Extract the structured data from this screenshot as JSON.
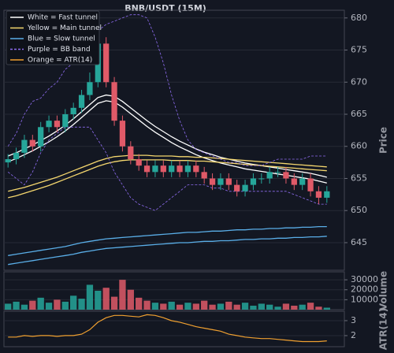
{
  "chart_data": [
    {
      "type": "candlestick",
      "title": "BNB/USDT (15M)",
      "y_label": "Price",
      "ylim": [
        640.7,
        681.2
      ],
      "yticks": [
        645,
        650,
        655,
        660,
        665,
        670,
        675,
        680
      ],
      "up_color": "#26a69a",
      "down_color": "#e05a68",
      "open": [
        657.5,
        658,
        659,
        661,
        660,
        663,
        664,
        663,
        665,
        666,
        668,
        670,
        676,
        670,
        664,
        660,
        658,
        657,
        656,
        657,
        656,
        657,
        656,
        657,
        656,
        655,
        654,
        655,
        654,
        653,
        654,
        655,
        655,
        656,
        656,
        655,
        654,
        655,
        653,
        652
      ],
      "high": [
        658.8,
        659.8,
        661.8,
        661.8,
        663.8,
        664.8,
        664.8,
        665.8,
        666.8,
        668.8,
        671.5,
        678.2,
        677,
        670.8,
        664.8,
        660.8,
        658.8,
        657.8,
        657.8,
        657.8,
        657.8,
        657.8,
        657.8,
        657.8,
        656.8,
        655.8,
        655.8,
        655.8,
        654.8,
        654.8,
        655.8,
        655.8,
        656.8,
        656.8,
        656.8,
        655.8,
        655.8,
        655.8,
        653.8,
        653.8
      ],
      "low": [
        656.7,
        657.2,
        658.2,
        659.2,
        659.2,
        662.2,
        662.2,
        662.2,
        664.2,
        665.2,
        667.2,
        669.2,
        669.2,
        663.2,
        659.2,
        657.2,
        656.2,
        655.2,
        655.2,
        655.2,
        655.2,
        655.2,
        655.2,
        655.2,
        654.2,
        653.2,
        653.2,
        653.2,
        652.2,
        652.2,
        653.2,
        654.2,
        654.2,
        655.2,
        654.2,
        653.2,
        653.2,
        652.2,
        651,
        651.2
      ],
      "close": [
        658,
        659,
        661,
        660,
        663,
        664,
        663,
        665,
        666,
        668,
        670,
        676,
        670,
        664,
        660,
        658,
        657,
        656,
        657,
        656,
        657,
        656,
        657,
        656,
        655,
        654,
        655,
        654,
        653,
        654,
        655,
        655,
        656,
        656,
        655,
        654,
        655,
        653,
        652,
        653
      ],
      "series": [
        {
          "name": "White = Fast tunnel",
          "color": "#ffffff",
          "upper": [
            658.5,
            659,
            659.6,
            660.2,
            660.9,
            661.6,
            662.4,
            663.3,
            664.3,
            665.4,
            666.5,
            667.6,
            668,
            667.8,
            667,
            666,
            665,
            664,
            663.1,
            662.3,
            661.5,
            660.8,
            660.2,
            659.6,
            659.1,
            658.7,
            658.3,
            658,
            657.7,
            657.4,
            657.2,
            657,
            656.8,
            656.6,
            656.4,
            656.2,
            656,
            655.8,
            655.5,
            655.2
          ],
          "lower": [
            657.6,
            658.1,
            658.7,
            659.3,
            660,
            660.7,
            661.5,
            662.4,
            663.4,
            664.5,
            665.6,
            666.7,
            667.1,
            666.9,
            666.1,
            665.1,
            664.1,
            663.1,
            662.2,
            661.4,
            660.6,
            659.9,
            659.3,
            658.7,
            658.2,
            657.8,
            657.4,
            657.1,
            656.8,
            656.5,
            656.3,
            656.1,
            655.9,
            655.7,
            655.5,
            655.3,
            655.1,
            654.9,
            654.6,
            654.3
          ]
        },
        {
          "name": "Yellow = Main tunnel",
          "color": "#f5d76e",
          "upper": [
            653,
            653.3,
            653.6,
            654,
            654.4,
            654.8,
            655.2,
            655.7,
            656.2,
            656.7,
            657.2,
            657.7,
            658.1,
            658.4,
            658.5,
            658.6,
            658.6,
            658.6,
            658.5,
            658.5,
            658.5,
            658.4,
            658.4,
            658.3,
            658.3,
            658.2,
            658.1,
            658,
            657.9,
            657.8,
            657.7,
            657.6,
            657.5,
            657.4,
            657.3,
            657.2,
            657.1,
            657,
            656.9,
            656.8
          ],
          "lower": [
            652,
            652.3,
            652.7,
            653.1,
            653.5,
            653.9,
            654.4,
            654.9,
            655.4,
            655.9,
            656.4,
            656.9,
            657.3,
            657.6,
            657.8,
            657.9,
            657.9,
            657.9,
            657.9,
            657.9,
            657.8,
            657.8,
            657.8,
            657.7,
            657.7,
            657.6,
            657.5,
            657.4,
            657.3,
            657.2,
            657.1,
            657,
            656.9,
            656.8,
            656.7,
            656.6,
            656.5,
            656.4,
            656.3,
            656.2
          ]
        },
        {
          "name": "Blue = Slow tunnel",
          "color": "#5aaee8",
          "upper": [
            643,
            643.2,
            643.4,
            643.6,
            643.8,
            644,
            644.2,
            644.4,
            644.7,
            645,
            645.2,
            645.4,
            645.6,
            645.7,
            645.8,
            645.9,
            646,
            646.1,
            646.2,
            646.3,
            646.4,
            646.5,
            646.6,
            646.6,
            646.7,
            646.8,
            646.8,
            646.9,
            647,
            647,
            647.1,
            647.1,
            647.2,
            647.2,
            647.3,
            647.3,
            647.4,
            647.4,
            647.5,
            647.5
          ],
          "lower": [
            641.6,
            641.8,
            642,
            642.2,
            642.4,
            642.6,
            642.8,
            643,
            643.2,
            643.5,
            643.7,
            643.9,
            644.1,
            644.2,
            644.3,
            644.4,
            644.5,
            644.6,
            644.7,
            644.8,
            644.9,
            645,
            645,
            645.1,
            645.2,
            645.2,
            645.3,
            645.3,
            645.4,
            645.5,
            645.5,
            645.6,
            645.6,
            645.7,
            645.7,
            645.8,
            645.8,
            645.9,
            645.9,
            646
          ]
        },
        {
          "name": "Purple = BB band",
          "color": "#8e6cf0",
          "dashed": true,
          "upper": [
            660,
            662,
            665,
            667,
            667.5,
            669,
            670,
            672,
            673,
            675,
            676,
            678,
            679,
            679.5,
            680,
            680.5,
            680.5,
            680,
            677,
            673,
            668,
            664,
            661,
            659.5,
            659,
            658.5,
            658,
            657.5,
            657.5,
            657,
            657,
            657,
            657.5,
            658,
            658,
            658,
            658,
            658.5,
            658.5,
            658.5
          ],
          "lower": [
            656,
            655,
            654,
            656,
            659,
            661,
            662,
            663,
            663,
            663,
            663,
            661,
            659,
            656,
            654,
            652,
            651,
            650.5,
            650,
            651,
            652,
            653,
            654,
            654,
            654,
            653.5,
            653.5,
            653,
            653,
            653,
            653,
            653,
            653,
            653,
            653,
            652.5,
            652,
            651.5,
            651,
            651
          ]
        }
      ]
    },
    {
      "type": "bar",
      "y_label": "Volume",
      "ylim": [
        0,
        38000
      ],
      "yticks": [
        10000,
        20000,
        30000
      ],
      "values": [
        6000,
        8000,
        5000,
        9000,
        12000,
        7000,
        10000,
        8000,
        14000,
        11000,
        25000,
        19000,
        22000,
        13000,
        30000,
        20000,
        12000,
        9000,
        7000,
        6000,
        8000,
        5000,
        7000,
        6000,
        9000,
        5000,
        6000,
        8000,
        5000,
        7000,
        4000,
        6000,
        5000,
        3000,
        6000,
        4000,
        5000,
        7000,
        3000,
        2000
      ]
    },
    {
      "type": "line",
      "y_label": "ATR(14)",
      "ylim": [
        1.26,
        3.63
      ],
      "yticks": [
        2,
        3
      ],
      "series": [
        {
          "name": "Orange = ATR(14)",
          "color": "#f0a030",
          "values": [
            1.9,
            1.9,
            2,
            1.95,
            2,
            2,
            1.95,
            2,
            2,
            2.1,
            2.4,
            2.9,
            3.2,
            3.35,
            3.35,
            3.3,
            3.25,
            3.4,
            3.35,
            3.2,
            3,
            2.9,
            2.75,
            2.6,
            2.5,
            2.4,
            2.3,
            2.1,
            2,
            1.9,
            1.85,
            1.8,
            1.8,
            1.75,
            1.7,
            1.65,
            1.6,
            1.6,
            1.6,
            1.65
          ]
        }
      ]
    }
  ]
}
